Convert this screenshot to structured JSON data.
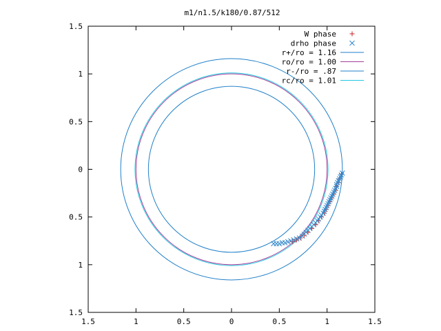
{
  "chart_data": {
    "type": "scatter",
    "title": "m1/n1.5/k180/0.87/512",
    "xlim": [
      -1.5,
      1.5
    ],
    "ylim": [
      -1.5,
      1.5
    ],
    "x_ticks": [
      -1.5,
      -1,
      -0.5,
      0,
      0.5,
      1,
      1.5
    ],
    "y_ticks": [
      -1.5,
      -1,
      -0.5,
      0,
      0.5,
      1,
      1.5
    ],
    "x_tick_labels": [
      "1.5",
      "1",
      "0.5",
      "0",
      "0.5",
      "1",
      "1.5"
    ],
    "y_tick_labels": [
      "1.5",
      "1",
      "0.5",
      "0",
      "0.5",
      "1",
      "1.5"
    ],
    "grid": false,
    "legend_position": "top-right",
    "circles": [
      {
        "name": "r+/ro = 1.16",
        "radius": 1.16,
        "color": "#1f7fc8"
      },
      {
        "name": "ro/ro = 1.00",
        "radius": 1.0,
        "color": "#a0409a"
      },
      {
        "name": "r-/ro = .87",
        "radius": 0.87,
        "color": "#1f7fc8"
      },
      {
        "name": "rc/ro = 1.01",
        "radius": 1.01,
        "color": "#1ec8e0"
      }
    ],
    "series": [
      {
        "name": "W phase",
        "marker": "plus",
        "color": "#cc2222",
        "points": [
          [
            1.15,
            -0.05
          ],
          [
            1.13,
            -0.1
          ],
          [
            1.12,
            -0.14
          ],
          [
            1.1,
            -0.18
          ],
          [
            1.09,
            -0.22
          ],
          [
            1.07,
            -0.26
          ],
          [
            1.05,
            -0.3
          ],
          [
            1.03,
            -0.34
          ],
          [
            1.01,
            -0.38
          ],
          [
            0.99,
            -0.42
          ],
          [
            0.97,
            -0.46
          ],
          [
            0.94,
            -0.5
          ],
          [
            0.91,
            -0.54
          ],
          [
            0.88,
            -0.58
          ],
          [
            0.84,
            -0.62
          ],
          [
            0.8,
            -0.66
          ],
          [
            0.76,
            -0.69
          ],
          [
            0.72,
            -0.72
          ],
          [
            0.68,
            -0.74
          ],
          [
            0.64,
            -0.76
          ]
        ]
      },
      {
        "name": "drho phase",
        "marker": "cross",
        "color": "#3388cc",
        "points": [
          [
            1.16,
            -0.04
          ],
          [
            1.15,
            -0.06
          ],
          [
            1.14,
            -0.08
          ],
          [
            1.13,
            -0.1
          ],
          [
            1.12,
            -0.12
          ],
          [
            1.11,
            -0.14
          ],
          [
            1.1,
            -0.16
          ],
          [
            1.1,
            -0.18
          ],
          [
            1.09,
            -0.2
          ],
          [
            1.08,
            -0.22
          ],
          [
            1.07,
            -0.24
          ],
          [
            1.06,
            -0.26
          ],
          [
            1.05,
            -0.28
          ],
          [
            1.04,
            -0.3
          ],
          [
            1.03,
            -0.32
          ],
          [
            1.02,
            -0.34
          ],
          [
            1.01,
            -0.36
          ],
          [
            1.0,
            -0.38
          ],
          [
            0.99,
            -0.4
          ],
          [
            0.98,
            -0.42
          ],
          [
            0.97,
            -0.44
          ],
          [
            0.96,
            -0.46
          ],
          [
            0.94,
            -0.48
          ],
          [
            0.93,
            -0.5
          ],
          [
            0.91,
            -0.52
          ],
          [
            0.9,
            -0.54
          ],
          [
            0.88,
            -0.56
          ],
          [
            0.86,
            -0.58
          ],
          [
            0.84,
            -0.6
          ],
          [
            0.82,
            -0.62
          ],
          [
            0.8,
            -0.64
          ],
          [
            0.78,
            -0.66
          ],
          [
            0.76,
            -0.68
          ],
          [
            0.74,
            -0.7
          ],
          [
            0.71,
            -0.72
          ],
          [
            0.68,
            -0.73
          ],
          [
            0.65,
            -0.74
          ],
          [
            0.62,
            -0.75
          ],
          [
            0.59,
            -0.76
          ],
          [
            0.56,
            -0.77
          ],
          [
            0.53,
            -0.77
          ],
          [
            0.5,
            -0.78
          ],
          [
            0.47,
            -0.78
          ],
          [
            0.44,
            -0.78
          ]
        ]
      }
    ]
  }
}
